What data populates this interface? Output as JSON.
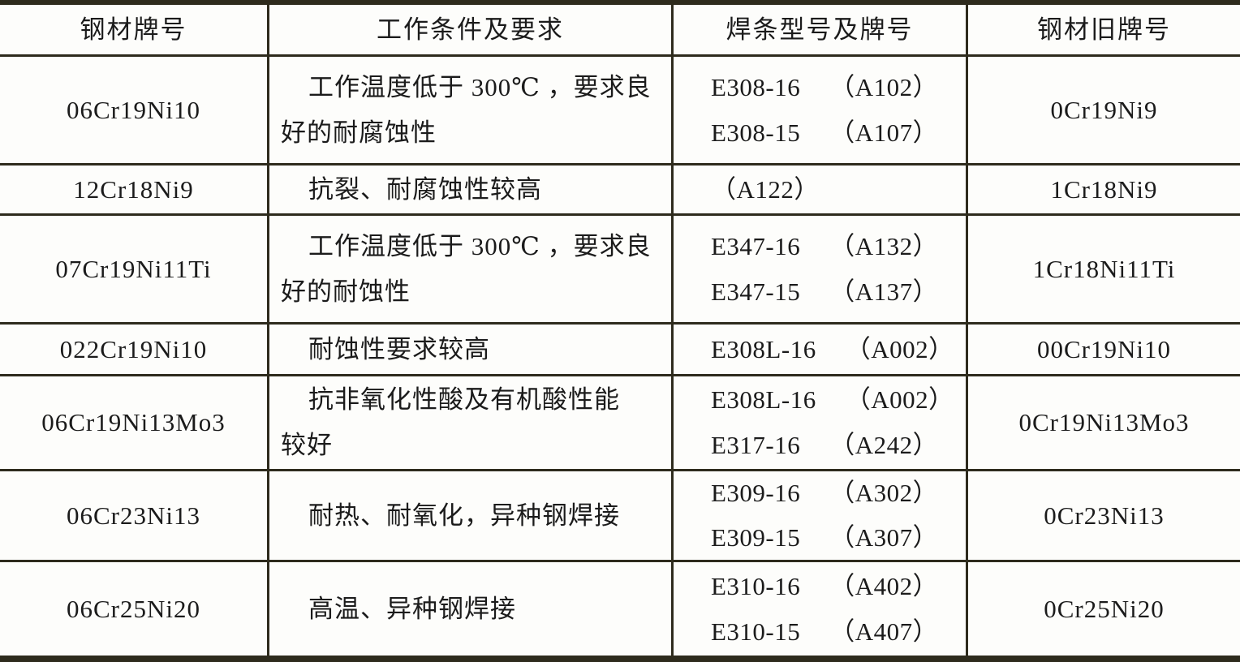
{
  "style": {
    "border_color": "#2e2b1d",
    "background": "#fdfdfb",
    "text_color": "#1b1b1b"
  },
  "table": {
    "columns": [
      {
        "label": "钢材牌号"
      },
      {
        "label": "工作条件及要求"
      },
      {
        "label": "焊条型号及牌号"
      },
      {
        "label": "钢材旧牌号"
      }
    ],
    "rows": [
      {
        "grade": "06Cr19Ni10",
        "conditions": [
          "工作温度低于 300℃ ，要求良",
          "好的耐腐蚀性"
        ],
        "electrodes": [
          {
            "model": "E308-16",
            "brand": "（A102）"
          },
          {
            "model": "E308-15",
            "brand": "（A107）"
          }
        ],
        "old_grade": "0Cr19Ni9"
      },
      {
        "grade": "12Cr18Ni9",
        "conditions": [
          "抗裂、耐腐蚀性较高"
        ],
        "electrodes": [
          {
            "brand": "（A122）"
          }
        ],
        "old_grade": "1Cr18Ni9"
      },
      {
        "grade": "07Cr19Ni11Ti",
        "conditions": [
          "工作温度低于 300℃ ，要求良",
          "好的耐蚀性"
        ],
        "electrodes": [
          {
            "model": "E347-16",
            "brand": "（A132）"
          },
          {
            "model": "E347-15",
            "brand": "（A137）"
          }
        ],
        "old_grade": "1Cr18Ni11Ti"
      },
      {
        "grade": "022Cr19Ni10",
        "conditions": [
          "耐蚀性要求较高"
        ],
        "electrodes": [
          {
            "model": "E308L-16",
            "brand": "（A002）"
          }
        ],
        "old_grade": "00Cr19Ni10"
      },
      {
        "grade": "06Cr19Ni13Mo3",
        "conditions": [
          "抗非氧化性酸及有机酸性能",
          "较好"
        ],
        "electrodes": [
          {
            "model": "E308L-16",
            "brand": "（A002）"
          },
          {
            "model": "E317-16",
            "brand": "（A242）"
          }
        ],
        "old_grade": "0Cr19Ni13Mo3"
      },
      {
        "grade": "06Cr23Ni13",
        "conditions": [
          "耐热、耐氧化，异种钢焊接"
        ],
        "electrodes": [
          {
            "model": "E309-16",
            "brand": "（A302）"
          },
          {
            "model": "E309-15",
            "brand": "（A307）"
          }
        ],
        "old_grade": "0Cr23Ni13"
      },
      {
        "grade": "06Cr25Ni20",
        "conditions": [
          "高温、异种钢焊接"
        ],
        "electrodes": [
          {
            "model": "E310-16",
            "brand": "（A402）"
          },
          {
            "model": "E310-15",
            "brand": "（A407）"
          }
        ],
        "old_grade": "0Cr25Ni20"
      }
    ]
  }
}
